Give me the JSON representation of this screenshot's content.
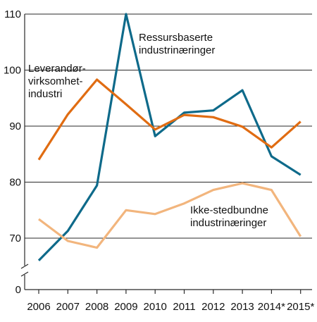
{
  "chart_data": {
    "type": "line",
    "title": "",
    "xlabel": "",
    "ylabel": "",
    "categories": [
      "2006",
      "2007",
      "2008",
      "2009",
      "2010",
      "2011",
      "2012",
      "2013",
      "2014*",
      "2015*"
    ],
    "y_ticks": [
      "110",
      "100",
      "90",
      "80",
      "70",
      "0"
    ],
    "ylim": [
      66,
      110
    ],
    "axis_break": true,
    "grid": true,
    "series": [
      {
        "id": "ressurs",
        "name_lines": [
          "Ressursbaserte",
          "industrinæringer"
        ],
        "color": "#0e6a8a",
        "values": [
          66.0,
          71.3,
          79.4,
          110.0,
          88.2,
          92.4,
          92.8,
          96.4,
          84.6,
          81.3
        ]
      },
      {
        "id": "leverandor",
        "name_lines": [
          "Leverandør-",
          "virksomhet-",
          "industri"
        ],
        "color": "#e06c12",
        "values": [
          84.0,
          92.1,
          98.3,
          93.9,
          89.4,
          92.0,
          91.6,
          89.9,
          86.2,
          90.8
        ]
      },
      {
        "id": "ikke",
        "name_lines": [
          "Ikke-stedbundne",
          "industrinæringer"
        ],
        "color": "#f2b57d",
        "values": [
          73.4,
          69.5,
          68.3,
          75.0,
          74.3,
          76.2,
          78.6,
          79.8,
          78.6,
          70.3
        ]
      }
    ]
  }
}
